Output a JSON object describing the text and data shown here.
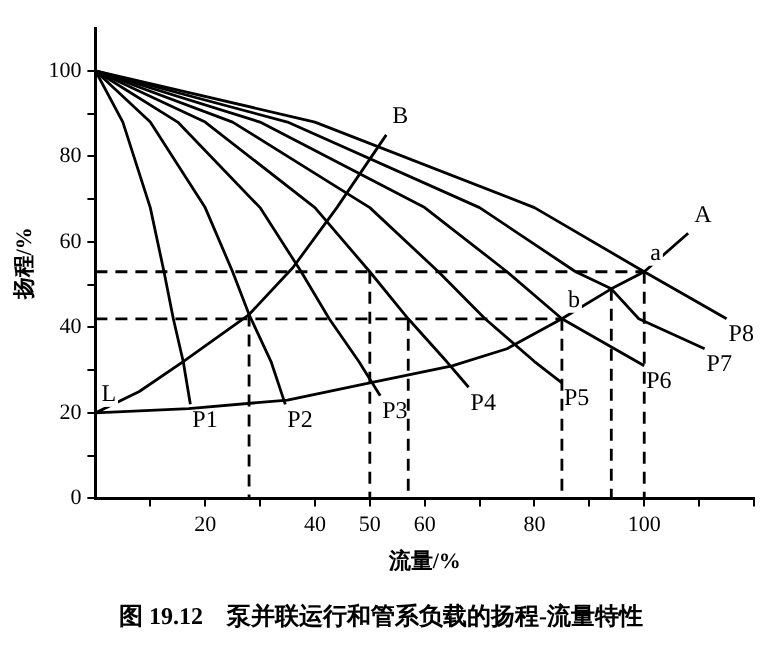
{
  "chart_data": {
    "type": "line",
    "title": "图 19.12　泵并联运行和管系负载的扬程-流量特性",
    "xlabel": "流量/%",
    "ylabel": "扬程/%",
    "xlim": [
      0,
      120
    ],
    "xticks": [
      {
        "value": 10,
        "label": null
      },
      20,
      {
        "value": 30,
        "label": null
      },
      40,
      50,
      60,
      {
        "value": 70,
        "label": null
      },
      80,
      {
        "value": 90,
        "label": null
      },
      100,
      {
        "value": 110,
        "label": null
      },
      {
        "value": 120,
        "label": null
      }
    ],
    "ylim": [
      0,
      110
    ],
    "yticks": [
      0,
      {
        "value": 10,
        "label": null
      },
      20,
      {
        "value": 30,
        "label": null
      },
      40,
      {
        "value": 50,
        "label": null
      },
      60,
      {
        "value": 70,
        "label": null
      },
      80,
      {
        "value": 90,
        "label": null
      },
      100
    ],
    "grid": false,
    "legend": false,
    "marker": "none",
    "line_style": "solid",
    "series": [
      {
        "name": "P1",
        "color": "#000000",
        "x": [
          0,
          5,
          10,
          12.5,
          14.2,
          16,
          17.3
        ],
        "values": [
          100,
          88,
          68,
          53,
          42,
          32,
          22
        ]
      },
      {
        "name": "P2",
        "color": "#000000",
        "x": [
          0,
          10,
          20,
          25,
          28,
          32,
          34.6
        ],
        "values": [
          100,
          88,
          68,
          53,
          43,
          32,
          22
        ]
      },
      {
        "name": "P3",
        "color": "#000000",
        "x": [
          0,
          15,
          30,
          37.5,
          42.6,
          48,
          51.9
        ],
        "values": [
          100,
          88,
          68,
          53,
          42,
          32,
          24
        ]
      },
      {
        "name": "P4",
        "color": "#000000",
        "x": [
          0,
          20,
          40,
          50,
          57,
          64,
          68
        ],
        "values": [
          100,
          88,
          68,
          53,
          42,
          32,
          26
        ]
      },
      {
        "name": "P5",
        "color": "#000000",
        "x": [
          0,
          25,
          50,
          62.5,
          71,
          80,
          85
        ],
        "values": [
          100,
          88,
          68,
          53,
          42,
          32,
          27
        ]
      },
      {
        "name": "P6",
        "color": "#000000",
        "x": [
          0,
          30,
          60,
          75,
          85,
          100
        ],
        "values": [
          100,
          88,
          68,
          53,
          42,
          31
        ]
      },
      {
        "name": "P7",
        "color": "#000000",
        "x": [
          0,
          35,
          70,
          87.5,
          94,
          99,
          111
        ],
        "values": [
          100,
          88,
          68,
          53,
          49,
          42,
          35
        ]
      },
      {
        "name": "P8",
        "color": "#000000",
        "x": [
          0,
          40,
          80,
          100,
          115
        ],
        "values": [
          100,
          88,
          68,
          53,
          42
        ]
      },
      {
        "color": "#000000",
        "x": [
          53,
          44,
          36,
          28,
          16,
          8,
          0,
          17,
          35,
          50,
          65,
          75,
          85,
          94,
          100,
          108
        ],
        "values": [
          85,
          68,
          54,
          43,
          32,
          25,
          20,
          21,
          23,
          27,
          31,
          35,
          42,
          49,
          53,
          62
        ]
      },
      {
        "color": "#000000",
        "line_style": "dashed",
        "x": [
          0,
          100
        ],
        "values": [
          53,
          53
        ]
      },
      {
        "color": "#000000",
        "line_style": "dashed",
        "x": [
          0,
          85
        ],
        "values": [
          42,
          42
        ]
      },
      {
        "color": "#000000",
        "line_style": "dashed",
        "x": [
          28,
          28
        ],
        "values": [
          43,
          0
        ]
      },
      {
        "color": "#000000",
        "line_style": "dashed",
        "x": [
          50,
          50
        ],
        "values": [
          53,
          0
        ]
      },
      {
        "color": "#000000",
        "line_style": "dashed",
        "x": [
          57,
          57
        ],
        "values": [
          42,
          0
        ]
      },
      {
        "color": "#000000",
        "line_style": "dashed",
        "x": [
          85,
          85
        ],
        "values": [
          42,
          0
        ]
      },
      {
        "color": "#000000",
        "line_style": "dashed",
        "x": [
          94,
          94
        ],
        "values": [
          49,
          0
        ]
      },
      {
        "color": "#000000",
        "line_style": "dashed",
        "x": [
          100,
          100
        ],
        "values": [
          53,
          0
        ]
      }
    ],
    "annotations": [
      {
        "text": "L",
        "x": 0,
        "y": 20
      },
      {
        "text": "A",
        "x": 108,
        "y": 62
      },
      {
        "text": "B",
        "x": 53,
        "y": 85
      },
      {
        "text": "a",
        "x": 100,
        "y": 53
      },
      {
        "text": "b",
        "x": 85,
        "y": 42
      }
    ]
  }
}
